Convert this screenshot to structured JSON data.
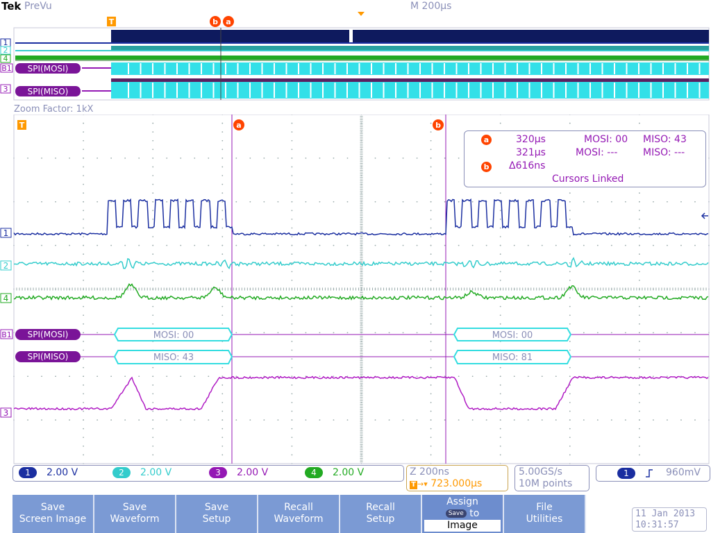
{
  "header": {
    "brand": "Tek",
    "mode": "PreVu",
    "horizontal_scale": "M 200µs"
  },
  "zoom": {
    "factor_label": "Zoom Factor: 1kX"
  },
  "markers": {
    "trigger": "T",
    "cursor_a": "a",
    "cursor_b": "b"
  },
  "overview_labels": {
    "ch1": "1",
    "ch2": "2",
    "ch4": "4",
    "bus1": "B1",
    "bus1_name": "SPI(MOSI)",
    "ch3": "3",
    "bus3_name": "SPI(MISO)"
  },
  "main_labels": {
    "ch1": "1",
    "ch2": "2",
    "ch4": "4",
    "bus1": "B1",
    "bus1_name": "SPI(MOSI)",
    "bus2_name": "SPI(MISO)",
    "ch3": "3"
  },
  "decode": {
    "mosi_packets": [
      "MOSI: 00",
      "MOSI: 00"
    ],
    "miso_packets": [
      "MISO: 43",
      "MISO: 81"
    ]
  },
  "cursor_readout": {
    "a_time": "320µs",
    "a_mosi": "MOSI: 00",
    "a_miso": "MISO: 43",
    "b_time": "321µs",
    "b_mosi": "MOSI: ---",
    "b_miso": "MISO: ---",
    "delta": "Δ616ns",
    "linked": "Cursors Linked"
  },
  "channels": [
    {
      "num": "1",
      "scale": "2.00 V",
      "color": "#1a2ea0"
    },
    {
      "num": "2",
      "scale": "2.00 V",
      "color": "#33cccc"
    },
    {
      "num": "3",
      "scale": "2.00 V",
      "color": "#9418b4"
    },
    {
      "num": "4",
      "scale": "2.00 V",
      "color": "#22aa22"
    }
  ],
  "timebase": {
    "zoom": "Z 200ns",
    "position": "723.000µs"
  },
  "acquisition": {
    "rate": "5.00GS/s",
    "points": "10M points"
  },
  "trigger": {
    "source": "1",
    "slope_icon": "rising-edge-icon",
    "level": "960mV"
  },
  "buttons": [
    {
      "line1": "Save",
      "line2": "Screen Image"
    },
    {
      "line1": "Save",
      "line2": "Waveform"
    },
    {
      "line1": "Save",
      "line2": "Setup"
    },
    {
      "line1": "Recall",
      "line2": "Waveform"
    },
    {
      "line1": "Recall",
      "line2": "Setup"
    },
    {
      "line1": "Assign",
      "key": "Save",
      "to": "to",
      "line3": "Image"
    },
    {
      "line1": "File",
      "line2": "Utilities"
    }
  ],
  "datetime": {
    "date": "11 Jan  2013",
    "time": "10:31:57"
  },
  "colors": {
    "ch1": "#1a2ea0",
    "ch2": "#33cccc",
    "ch3": "#9418b4",
    "ch4": "#22aa22",
    "cursor": "#ff4400",
    "trigger": "#ff9900",
    "text_muted": "#8a8fb8",
    "softkey": "#7b9ad4"
  }
}
